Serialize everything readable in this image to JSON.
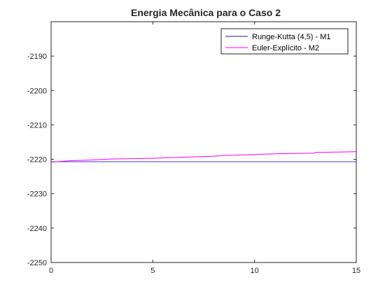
{
  "chart_data": {
    "type": "line",
    "title": "Energia Mecânica para o Caso 2",
    "xlabel": "",
    "ylabel": "",
    "xlim": [
      0,
      15
    ],
    "ylim": [
      -2250,
      -2180
    ],
    "xticks": [
      0,
      5,
      10,
      15
    ],
    "yticks": [
      -2250,
      -2240,
      -2230,
      -2220,
      -2210,
      -2200,
      -2190
    ],
    "grid": false,
    "legend_position": "top-right",
    "series": [
      {
        "name": "Runge-Kutta (4,5) - M1",
        "color": "#3b3bd6",
        "legend_color": "#1f1f6e",
        "x": [
          0,
          15
        ],
        "y": [
          -2220.7,
          -2220.7
        ]
      },
      {
        "name": "Euler-Explícito - M2",
        "color": "#ff00ff",
        "x": [
          0,
          0.5,
          1.0,
          1.5,
          2.0,
          2.5,
          3.0,
          4.0,
          5.0,
          6.0,
          7.0,
          8.0,
          8.5,
          9.0,
          10.0,
          10.5,
          11.0,
          12.0,
          12.9,
          13.0,
          14.0,
          15.0
        ],
        "y": [
          -2220.8,
          -2220.6,
          -2220.4,
          -2220.3,
          -2220.2,
          -2220.0,
          -2219.9,
          -2219.8,
          -2219.7,
          -2219.5,
          -2219.3,
          -2219.1,
          -2218.9,
          -2218.8,
          -2218.6,
          -2218.5,
          -2218.4,
          -2218.3,
          -2218.2,
          -2218.0,
          -2217.9,
          -2217.8
        ]
      }
    ]
  }
}
